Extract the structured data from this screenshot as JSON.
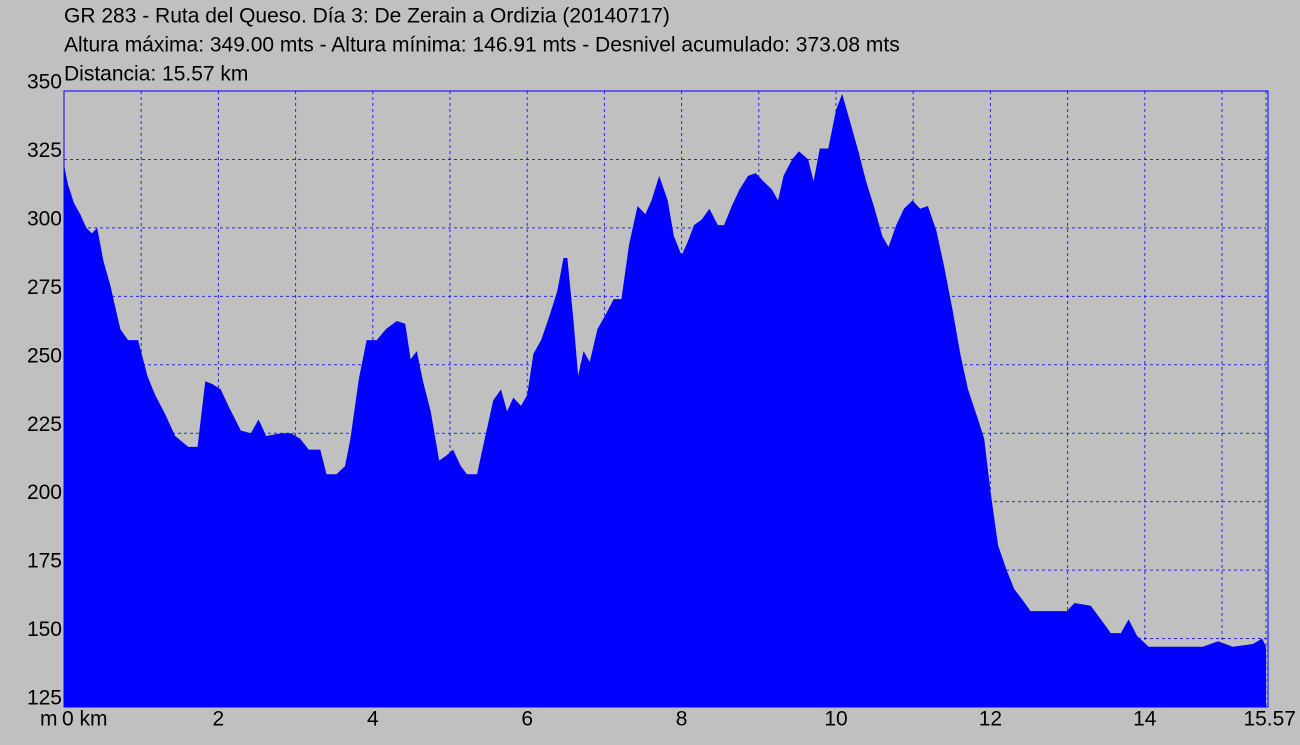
{
  "chart_data": {
    "type": "area",
    "title": "GR 283 - Ruta del Queso. Día 3: De Zerain a Ordizia (20140717)",
    "subtitle": "Altura máxima: 349.00 mts - Altura mínima: 146.91 mts - Desnivel acumulado: 373.08 mts",
    "distance_label": "Distancia: 15.57 km",
    "y_label": "m",
    "color": "#0000ff",
    "grid": true,
    "xlim": [
      0,
      15.57
    ],
    "ylim": [
      125,
      350
    ],
    "yticks": [
      125,
      150,
      175,
      200,
      225,
      250,
      275,
      300,
      325,
      350
    ],
    "xticks": [
      {
        "value": 0,
        "label": "0 km"
      },
      2,
      4,
      6,
      8,
      10,
      12,
      14,
      {
        "value": 15.57,
        "label": "15.57"
      }
    ],
    "x_minor_ticks": [
      1,
      3,
      5,
      7,
      9,
      11,
      13,
      15
    ],
    "x": [
      0,
      0.05,
      0.13,
      0.21,
      0.29,
      0.36,
      0.43,
      0.51,
      0.6,
      0.73,
      0.83,
      0.96,
      1.08,
      1.18,
      1.31,
      1.44,
      1.61,
      1.73,
      1.83,
      1.92,
      2.03,
      2.13,
      2.29,
      2.42,
      2.52,
      2.62,
      2.81,
      2.94,
      3.06,
      3.17,
      3.32,
      3.4,
      3.53,
      3.64,
      3.71,
      3.82,
      3.92,
      4.05,
      4.17,
      4.31,
      4.42,
      4.49,
      4.57,
      4.65,
      4.75,
      4.86,
      4.96,
      5.04,
      5.14,
      5.22,
      5.35,
      5.45,
      5.56,
      5.66,
      5.74,
      5.82,
      5.92,
      6,
      6.08,
      6.18,
      6.29,
      6.39,
      6.47,
      6.52,
      6.6,
      6.66,
      6.73,
      6.81,
      6.91,
      7.01,
      7.12,
      7.22,
      7.32,
      7.43,
      7.53,
      7.61,
      7.71,
      7.82,
      7.9,
      8,
      8.08,
      8.16,
      8.26,
      8.36,
      8.47,
      8.55,
      8.65,
      8.75,
      8.86,
      8.96,
      9.06,
      9.17,
      9.25,
      9.32,
      9.43,
      9.52,
      9.64,
      9.71,
      9.79,
      9.9,
      10,
      10.08,
      10.18,
      10.29,
      10.39,
      10.49,
      10.6,
      10.68,
      10.78,
      10.88,
      10.99,
      11.09,
      11.19,
      11.3,
      11.4,
      11.51,
      11.61,
      11.71,
      11.84,
      11.92,
      12,
      12.1,
      12.21,
      12.31,
      12.42,
      12.52,
      12.68,
      12.99,
      13.09,
      13.3,
      13.43,
      13.56,
      13.69,
      13.79,
      13.9,
      14.05,
      14.75,
      14.95,
      15.14,
      15.4,
      15.52,
      15.57
    ],
    "values": [
      323,
      316,
      309,
      305,
      300,
      298,
      300,
      288,
      279,
      263,
      259,
      259,
      246,
      239,
      232,
      224,
      220,
      220,
      244,
      243,
      241,
      235,
      226,
      225,
      230,
      224,
      225,
      225,
      223,
      219,
      219,
      210,
      210,
      213,
      223,
      245,
      259,
      259,
      263,
      266,
      265,
      252,
      255,
      244,
      233,
      215,
      217,
      219,
      213,
      210,
      210,
      223,
      237,
      241,
      233,
      238,
      235,
      239,
      254,
      259,
      268,
      277,
      289,
      289,
      266,
      246,
      255,
      251,
      263,
      268,
      274,
      274,
      294,
      308,
      305,
      310,
      319,
      310,
      297,
      290,
      295,
      301,
      303,
      307,
      301,
      301,
      308,
      314,
      319,
      320,
      317,
      314,
      310,
      319,
      325,
      328,
      325,
      317,
      329,
      329,
      343,
      349,
      339,
      328,
      317,
      308,
      297,
      293,
      301,
      307,
      310,
      307,
      308,
      299,
      286,
      270,
      254,
      241,
      230,
      223,
      204,
      184,
      175,
      168,
      164,
      160,
      160,
      160,
      163,
      162,
      157,
      152,
      152,
      157,
      151,
      147,
      147,
      149,
      147,
      148,
      150,
      147
    ]
  }
}
